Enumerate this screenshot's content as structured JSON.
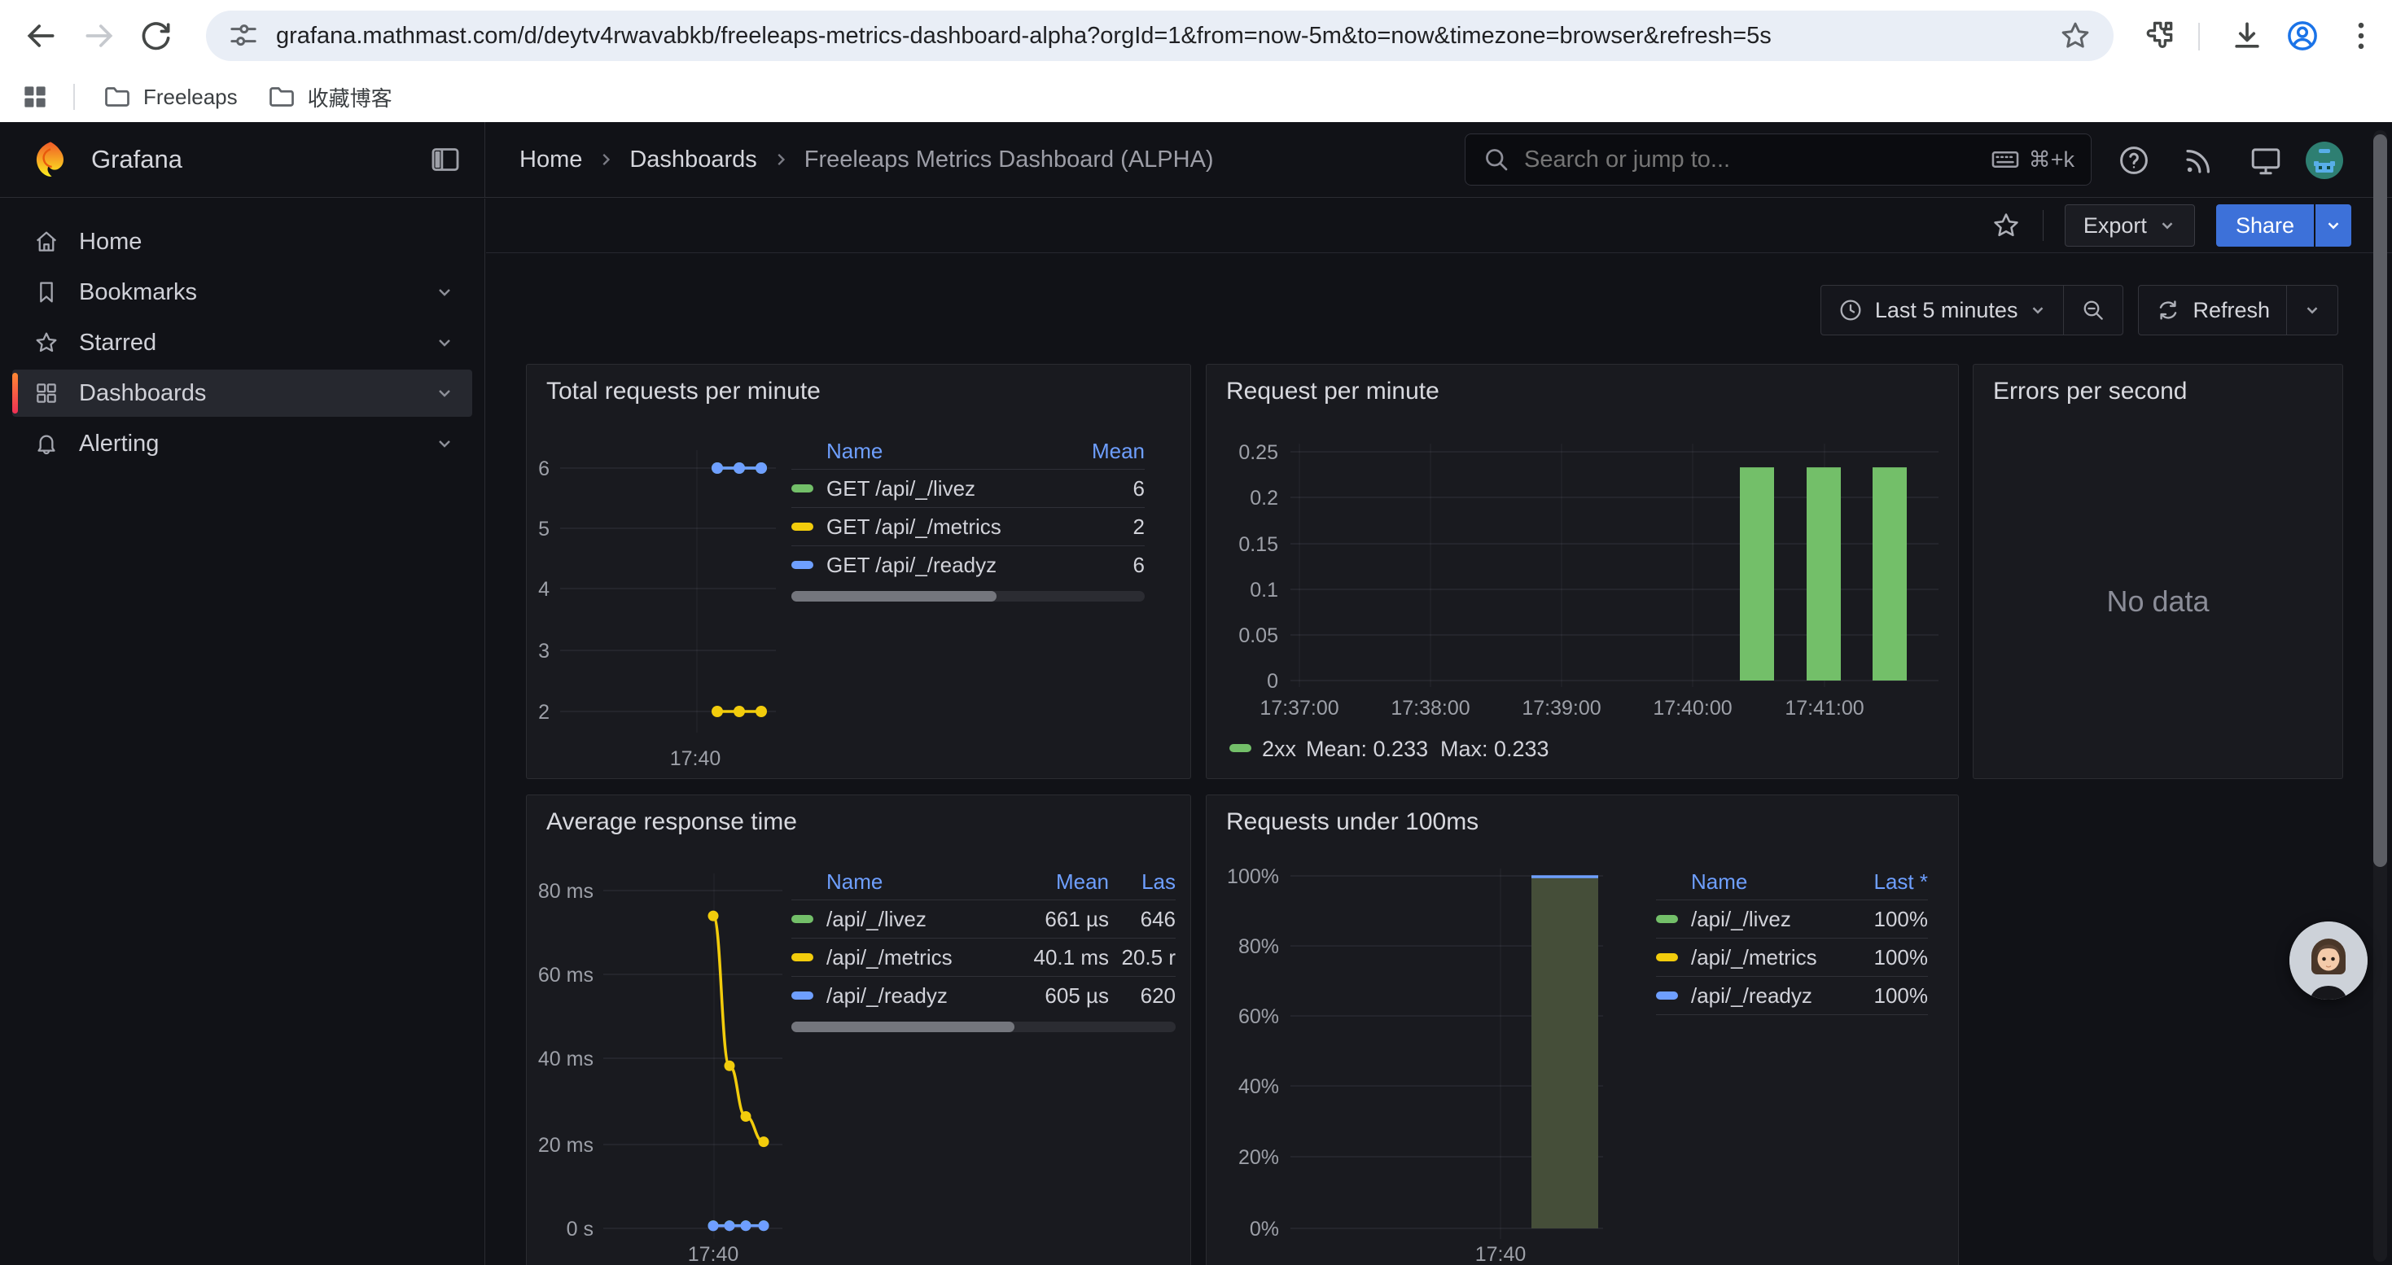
{
  "browser": {
    "url": "grafana.mathmast.com/d/deytv4rwavabkb/freeleaps-metrics-dashboard-alpha?orgId=1&from=now-5m&to=now&timezone=browser&refresh=5s",
    "bookmarks": [
      {
        "label": "Freeleaps"
      },
      {
        "label": "收藏博客"
      }
    ]
  },
  "nav": {
    "brand": "Grafana",
    "breadcrumb": [
      "Home",
      "Dashboards",
      "Freeleaps Metrics Dashboard (ALPHA)"
    ],
    "search_placeholder": "Search or jump to...",
    "search_shortcut": "⌘+k"
  },
  "sidebar": {
    "items": [
      {
        "label": "Home",
        "icon": "home-icon",
        "expandable": false,
        "active": false
      },
      {
        "label": "Bookmarks",
        "icon": "bookmark-icon",
        "expandable": true,
        "active": false
      },
      {
        "label": "Starred",
        "icon": "star-icon",
        "expandable": true,
        "active": false
      },
      {
        "label": "Dashboards",
        "icon": "apps-grid-icon",
        "expandable": true,
        "active": true
      },
      {
        "label": "Alerting",
        "icon": "bell-icon",
        "expandable": true,
        "active": false
      }
    ]
  },
  "toolbar": {
    "export_label": "Export",
    "share_label": "Share"
  },
  "timebar": {
    "range_label": "Last 5 minutes",
    "refresh_label": "Refresh"
  },
  "colors": {
    "green": "#73BF69",
    "yellow": "#F2CC0C",
    "blue": "#6E9FFF",
    "header_blue": "#6E9FFF",
    "share_blue": "#3D71D9",
    "bar_fill_under100": "#454E39"
  },
  "chart_data": [
    {
      "type": "line",
      "title": "Total requests per minute",
      "yticks": [
        "6",
        "5",
        "4",
        "3",
        "2"
      ],
      "ylim": [
        2,
        6
      ],
      "x_tick": "17:40",
      "x_approx": [
        "17:40:30",
        "17:40:45",
        "17:41:00"
      ],
      "grid": true,
      "legend_position": "right-table",
      "series": [
        {
          "name": "GET /api/_/livez",
          "color": "#73BF69",
          "values": [
            6,
            6,
            6
          ],
          "mean": "6"
        },
        {
          "name": "GET /api/_/metrics",
          "color": "#F2CC0C",
          "values": [
            2,
            2,
            2
          ],
          "mean": "2"
        },
        {
          "name": "GET /api/_/readyz",
          "color": "#6E9FFF",
          "values": [
            6,
            6,
            6
          ],
          "mean": "6"
        }
      ],
      "legend": {
        "columns": [
          "Name",
          "Mean"
        ]
      }
    },
    {
      "type": "bar",
      "title": "Request per minute",
      "yticks": [
        "0.25",
        "0.2",
        "0.15",
        "0.1",
        "0.05",
        "0"
      ],
      "ylim": [
        0,
        0.25
      ],
      "xticks": [
        "17:37:00",
        "17:38:00",
        "17:39:00",
        "17:40:00",
        "17:41:00"
      ],
      "grid": true,
      "legend_position": "bottom",
      "series": [
        {
          "name": "2xx",
          "color": "#73BF69",
          "x_approx": [
            "17:40:30",
            "17:41:00",
            "17:41:30"
          ],
          "values": [
            0.233,
            0.233,
            0.233
          ]
        }
      ],
      "legend_stats": [
        "Mean: 0.233",
        "Max: 0.233"
      ]
    },
    {
      "type": "none",
      "title": "Errors per second",
      "message": "No data"
    },
    {
      "type": "line",
      "title": "Average response time",
      "yticks": [
        "80 ms",
        "60 ms",
        "40 ms",
        "20 ms",
        "0 s"
      ],
      "ylim_ms": [
        0,
        80
      ],
      "x_tick": "17:40",
      "grid": true,
      "legend_position": "right-table",
      "series": [
        {
          "name": "/api/_/livez",
          "color": "#73BF69",
          "values_ms": [
            0.66,
            0.66,
            0.65,
            0.646
          ],
          "mean": "661 µs",
          "last": "646"
        },
        {
          "name": "/api/_/metrics",
          "color": "#F2CC0C",
          "values_ms": [
            74,
            38.5,
            26.5,
            20.5
          ],
          "mean": "40.1 ms",
          "last": "20.5 r"
        },
        {
          "name": "/api/_/readyz",
          "color": "#6E9FFF",
          "values_ms": [
            0.6,
            0.61,
            0.615,
            0.62
          ],
          "mean": "605 µs",
          "last": "620"
        }
      ],
      "legend": {
        "columns": [
          "Name",
          "Mean",
          "Las"
        ]
      }
    },
    {
      "type": "bar",
      "title": "Requests under 100ms",
      "yticks": [
        "100%",
        "80%",
        "60%",
        "40%",
        "20%",
        "0%"
      ],
      "ylim": [
        0,
        1
      ],
      "x_tick": "17:40",
      "grid": true,
      "bar": {
        "value_pct": 100,
        "fill": "#454E39",
        "top_color": "#6E9FFF"
      },
      "legend_position": "right-table",
      "series": [
        {
          "name": "/api/_/livez",
          "color": "#73BF69",
          "last": "100%"
        },
        {
          "name": "/api/_/metrics",
          "color": "#F2CC0C",
          "last": "100%"
        },
        {
          "name": "/api/_/readyz",
          "color": "#6E9FFF",
          "last": "100%"
        }
      ],
      "legend": {
        "columns": [
          "Name",
          "Last *"
        ]
      }
    }
  ]
}
